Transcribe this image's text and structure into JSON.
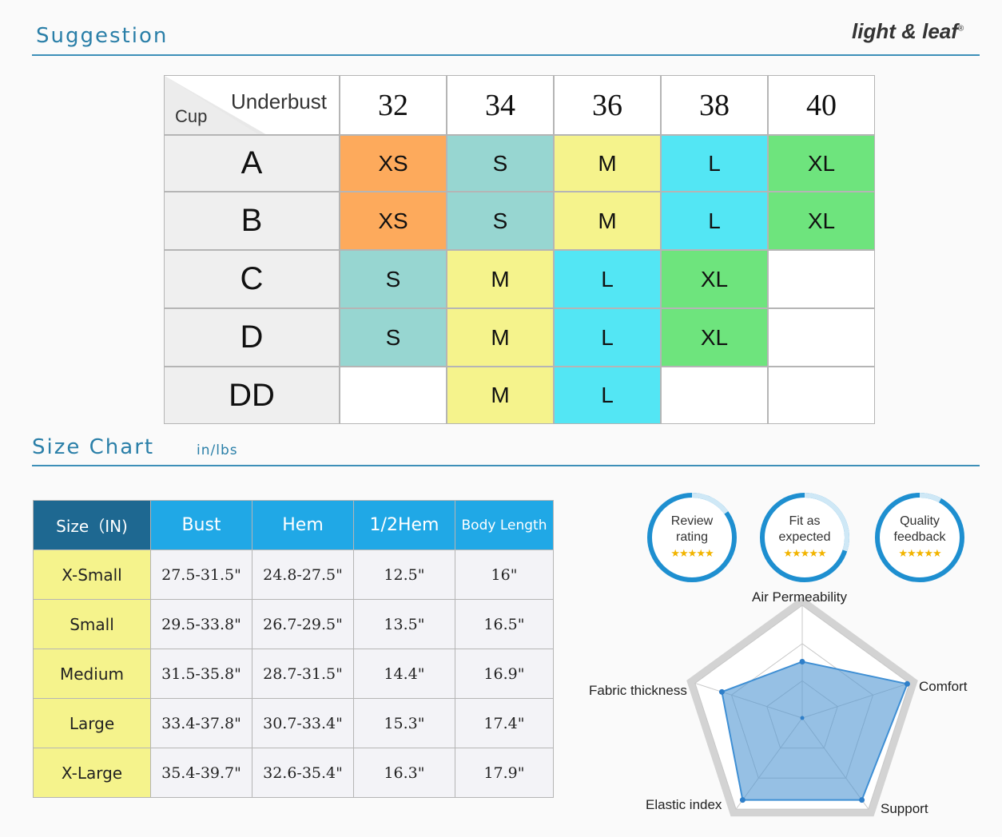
{
  "suggestion": {
    "title": "Suggestion"
  },
  "brand": {
    "name": "light & leaf",
    "reg": "®"
  },
  "grid": {
    "underbust_label": "Underbust",
    "cup_label": "Cup",
    "columns": [
      "32",
      "34",
      "36",
      "38",
      "40"
    ],
    "rows": [
      {
        "cup": "A",
        "cells": [
          "XS",
          "S",
          "M",
          "L",
          "XL"
        ]
      },
      {
        "cup": "B",
        "cells": [
          "XS",
          "S",
          "M",
          "L",
          "XL"
        ]
      },
      {
        "cup": "C",
        "cells": [
          "S",
          "M",
          "L",
          "XL",
          ""
        ]
      },
      {
        "cup": "D",
        "cells": [
          "S",
          "M",
          "L",
          "XL",
          ""
        ]
      },
      {
        "cup": "DD",
        "cells": [
          "",
          "M",
          "L",
          "",
          ""
        ]
      }
    ],
    "colors": {
      "XS": "#fdaa5c",
      "S": "#97d6d1",
      "M": "#f5f38c",
      "L": "#53e6f4",
      "XL": "#6ee47d",
      "": "#ffffff"
    }
  },
  "size_chart": {
    "title": "Size Chart",
    "units": "in/lbs",
    "headers": [
      "Size（IN)",
      "Bust",
      "Hem",
      "1/2Hem",
      "Body Length"
    ],
    "rows": [
      [
        "X-Small",
        "27.5-31.5\"",
        "24.8-27.5\"",
        "12.5\"",
        "16\""
      ],
      [
        "Small",
        "29.5-33.8\"",
        "26.7-29.5\"",
        "13.5\"",
        "16.5\""
      ],
      [
        "Medium",
        "31.5-35.8\"",
        "28.7-31.5\"",
        "14.4\"",
        "16.9\""
      ],
      [
        "Large",
        "33.4-37.8\"",
        "30.7-33.4\"",
        "15.3\"",
        "17.4\""
      ],
      [
        "X-Large",
        "35.4-39.7\"",
        "32.6-35.4\"",
        "16.3\"",
        "17.9\""
      ]
    ]
  },
  "badges": [
    {
      "line1": "Review",
      "line2": "rating",
      "stars": "★★★★★"
    },
    {
      "line1": "Fit as",
      "line2": "expected",
      "stars": "★★★★★"
    },
    {
      "line1": "Quality",
      "line2": "feedback",
      "stars": "★★★★★"
    }
  ],
  "radar": {
    "axes": [
      "Air Permeability",
      "Comfort",
      "Support",
      "Elastic index",
      "Fabric thickness"
    ],
    "values": [
      0.5,
      0.98,
      0.9,
      0.9,
      0.75
    ]
  }
}
